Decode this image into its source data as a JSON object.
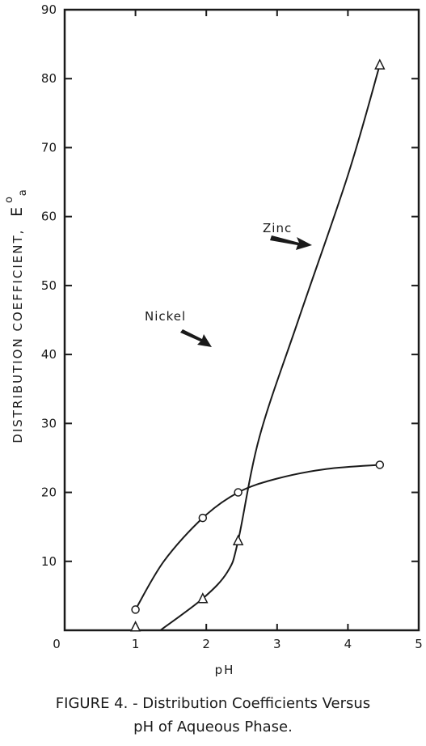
{
  "chart_data": {
    "type": "line",
    "xlabel": "pH",
    "ylabel_main": "DISTRIBUTION COEFFICIENT,",
    "ylabel_symbol": "E",
    "ylabel_superscript": "o",
    "ylabel_subscript": "a",
    "xlim": [
      0,
      5
    ],
    "ylim": [
      0,
      90
    ],
    "x_ticks": [
      {
        "value": 0,
        "label": "0"
      },
      {
        "value": 1,
        "label": "1"
      },
      {
        "value": 2,
        "label": "2"
      },
      {
        "value": 3,
        "label": "3"
      },
      {
        "value": 4,
        "label": "4"
      },
      {
        "value": 5,
        "label": "5"
      }
    ],
    "y_ticks": [
      {
        "value": 10,
        "label": "10"
      },
      {
        "value": 20,
        "label": "20"
      },
      {
        "value": 30,
        "label": "30"
      },
      {
        "value": 40,
        "label": "40"
      },
      {
        "value": 50,
        "label": "50"
      },
      {
        "value": 60,
        "label": "60"
      },
      {
        "value": 70,
        "label": "70"
      },
      {
        "value": 80,
        "label": "80"
      },
      {
        "value": 90,
        "label": "90"
      }
    ],
    "grid": false,
    "series": [
      {
        "name": "Zinc",
        "marker": "triangle",
        "points": [
          {
            "x": 1.0,
            "y": 0.5
          },
          {
            "x": 1.95,
            "y": 4.6
          },
          {
            "x": 2.45,
            "y": 13.0
          },
          {
            "x": 4.45,
            "y": 82.0
          }
        ],
        "curve": [
          {
            "x": 1.35,
            "y": 0.0
          },
          {
            "x": 1.95,
            "y": 4.6
          },
          {
            "x": 2.3,
            "y": 8.5
          },
          {
            "x": 2.45,
            "y": 13.0
          },
          {
            "x": 2.75,
            "y": 28.0
          },
          {
            "x": 3.3,
            "y": 45.0
          },
          {
            "x": 4.0,
            "y": 66.0
          },
          {
            "x": 4.45,
            "y": 82.0
          }
        ]
      },
      {
        "name": "Nickel",
        "marker": "circle",
        "points": [
          {
            "x": 1.0,
            "y": 3.0
          },
          {
            "x": 1.95,
            "y": 16.3
          },
          {
            "x": 2.45,
            "y": 20.0
          },
          {
            "x": 4.45,
            "y": 24.0
          }
        ],
        "curve": [
          {
            "x": 1.0,
            "y": 3.0
          },
          {
            "x": 1.4,
            "y": 10.0
          },
          {
            "x": 1.95,
            "y": 16.3
          },
          {
            "x": 2.45,
            "y": 20.0
          },
          {
            "x": 3.0,
            "y": 22.0
          },
          {
            "x": 3.7,
            "y": 23.4
          },
          {
            "x": 4.45,
            "y": 24.0
          }
        ]
      }
    ],
    "annotations": [
      {
        "text": "Zinc",
        "series": "Zinc"
      },
      {
        "text": "Nickel",
        "series": "Nickel"
      }
    ],
    "colors": {
      "ink": "#1a1a1a",
      "background": "#ffffff"
    }
  },
  "caption": {
    "line1": "FIGURE  4. - Distribution Coefficients Versus",
    "line2": "pH of Aqueous Phase."
  }
}
